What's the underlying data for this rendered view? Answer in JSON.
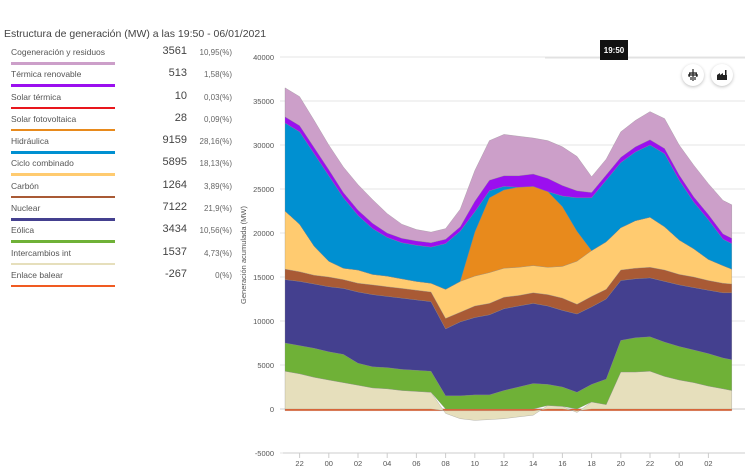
{
  "header": {
    "title": "Estructura de generación (MW) a las 19:50 - 06/01/2021"
  },
  "legend": [
    {
      "label": "Cogeneración y residuos",
      "value": "3561",
      "pct": "10,95(%)",
      "color": "#cc9fc9"
    },
    {
      "label": "Térmica renovable",
      "value": "513",
      "pct": "1,58(%)",
      "color": "#9b0fef"
    },
    {
      "label": "Solar térmica",
      "value": "10",
      "pct": "0,03(%)",
      "color": "#e8171d"
    },
    {
      "label": "Solar fotovoltaica",
      "value": "28",
      "pct": "0,09(%)",
      "color": "#e88a1c"
    },
    {
      "label": "Hidráulica",
      "value": "9159",
      "pct": "28,16(%)",
      "color": "#0090d1"
    },
    {
      "label": "Ciclo combinado",
      "value": "5895",
      "pct": "18,13(%)",
      "color": "#ffcb70"
    },
    {
      "label": "Carbón",
      "value": "1264",
      "pct": "3,89(%)",
      "color": "#a95a35"
    },
    {
      "label": "Nuclear",
      "value": "7122",
      "pct": "21,9(%)",
      "color": "#44408f"
    },
    {
      "label": "Eólica",
      "value": "3434",
      "pct": "10,56(%)",
      "color": "#6fb137"
    },
    {
      "label": "Intercambios int",
      "value": "1537",
      "pct": "4,73(%)",
      "color": "#e6dfbc"
    },
    {
      "label": "Enlace balear",
      "value": "-267",
      "pct": "0(%)",
      "color": "#f05b22"
    }
  ],
  "tooltip": {
    "time": "19:50"
  },
  "toolbar": {
    "icons": [
      {
        "name": "electricity-tower-icon",
        "glyph": "⚡"
      },
      {
        "name": "factory-icon",
        "glyph": "🏭"
      }
    ]
  },
  "chart_data": {
    "type": "area",
    "stacked": true,
    "title": "Estructura de generación (MW)",
    "xlabel": "",
    "ylabel": "Generación acumulada (MW)",
    "ylim": [
      -5000,
      40000
    ],
    "yticks": [
      -5000,
      0,
      5000,
      10000,
      15000,
      20000,
      25000,
      30000,
      35000,
      40000
    ],
    "xticks": [
      {
        "h": 1,
        "label": "22"
      },
      {
        "h": 3,
        "label": "00"
      },
      {
        "h": 5,
        "label": "02"
      },
      {
        "h": 7,
        "label": "04"
      },
      {
        "h": 9,
        "label": "06"
      },
      {
        "h": 11,
        "label": "08"
      },
      {
        "h": 13,
        "label": "10"
      },
      {
        "h": 15,
        "label": "12"
      },
      {
        "h": 17,
        "label": "14"
      },
      {
        "h": 19,
        "label": "16"
      },
      {
        "h": 21,
        "label": "18"
      },
      {
        "h": 23,
        "label": "20"
      },
      {
        "h": 25,
        "label": "22"
      },
      {
        "h": 27,
        "label": "00"
      },
      {
        "h": 29,
        "label": "02"
      }
    ],
    "x_hours_from_2100": [
      0,
      1,
      2,
      3,
      4,
      5,
      6,
      7,
      8,
      9,
      10,
      11,
      12,
      13,
      14,
      15,
      16,
      17,
      18,
      19,
      20,
      21,
      22,
      23,
      24,
      25,
      26,
      27,
      28,
      29,
      30,
      30.6
    ],
    "grid": true,
    "legend_position": "left",
    "series": [
      {
        "name": "Enlace balear",
        "color": "#f05b22",
        "values": [
          -200,
          -200,
          -200,
          -200,
          -200,
          -200,
          -200,
          -200,
          -200,
          -200,
          -200,
          -200,
          -200,
          -200,
          -200,
          -200,
          -200,
          -200,
          -200,
          -200,
          -200,
          -200,
          -200,
          -200,
          -200,
          -200,
          -200,
          -200,
          -200,
          -200,
          -200,
          -200
        ]
      },
      {
        "name": "Intercambios int",
        "color": "#e6dfbc",
        "values": [
          4300,
          4000,
          3600,
          3300,
          3000,
          2700,
          2400,
          2300,
          2100,
          2000,
          1900,
          -300,
          -900,
          -1100,
          -1000,
          -900,
          -700,
          -500,
          400,
          300,
          -200,
          800,
          500,
          4200,
          4200,
          4300,
          3700,
          3300,
          3000,
          2600,
          2300,
          2100
        ]
      },
      {
        "name": "Eólica",
        "color": "#6fb137",
        "values": [
          3200,
          3200,
          3300,
          3200,
          3200,
          2500,
          2400,
          2400,
          2400,
          2400,
          2400,
          1500,
          1500,
          1600,
          1600,
          2100,
          2500,
          2900,
          2400,
          2200,
          1900,
          2000,
          2900,
          3600,
          3900,
          3900,
          3900,
          3800,
          3700,
          3700,
          3500,
          3500
        ]
      },
      {
        "name": "Nuclear",
        "color": "#44408f",
        "values": [
          7200,
          7300,
          7300,
          7400,
          7500,
          8100,
          8200,
          8100,
          8100,
          8000,
          7900,
          7600,
          8400,
          8800,
          9100,
          9300,
          9200,
          9100,
          8900,
          8700,
          8900,
          8800,
          9100,
          6800,
          6700,
          6700,
          6900,
          7000,
          7100,
          7200,
          7400,
          7600
        ]
      },
      {
        "name": "Carbón",
        "color": "#a95a35",
        "values": [
          1200,
          1100,
          1000,
          1100,
          1000,
          1000,
          1100,
          1100,
          1100,
          1100,
          1100,
          1200,
          1100,
          1300,
          1300,
          1300,
          1200,
          1200,
          1300,
          1400,
          1100,
          1200,
          1100,
          1200,
          1200,
          1200,
          1300,
          1200,
          1200,
          1100,
          1100,
          1000
        ]
      },
      {
        "name": "Ciclo combinado",
        "color": "#ffcb70",
        "values": [
          6600,
          5400,
          3300,
          1800,
          1300,
          1500,
          1200,
          1200,
          1100,
          1000,
          1000,
          3300,
          3500,
          3400,
          3500,
          3300,
          3200,
          3100,
          3100,
          3600,
          4900,
          5200,
          5400,
          4800,
          5400,
          5700,
          4900,
          3900,
          3200,
          2400,
          2000,
          1700
        ]
      },
      {
        "name": "Solar fotovoltaica",
        "color": "#e88a1c",
        "values": [
          0,
          0,
          0,
          0,
          0,
          0,
          0,
          0,
          0,
          0,
          0,
          0,
          0,
          5000,
          8500,
          8900,
          9100,
          9000,
          8600,
          6800,
          3400,
          0,
          0,
          0,
          0,
          0,
          0,
          0,
          0,
          0,
          0,
          0
        ]
      },
      {
        "name": "Solar térmica",
        "color": "#e8171d",
        "values": [
          0,
          0,
          0,
          0,
          0,
          0,
          0,
          0,
          0,
          0,
          0,
          0,
          0,
          0,
          0,
          0,
          0,
          0,
          0,
          0,
          0,
          0,
          0,
          0,
          0,
          0,
          0,
          0,
          0,
          0,
          0,
          0
        ]
      },
      {
        "name": "Hidráulica",
        "color": "#0090d1",
        "values": [
          10000,
          10500,
          10500,
          9700,
          8000,
          6200,
          5200,
          4400,
          4100,
          4100,
          4100,
          5200,
          5700,
          2300,
          800,
          400,
          0,
          0,
          0,
          1200,
          3800,
          6000,
          7000,
          7400,
          7800,
          8200,
          8300,
          6800,
          5300,
          4500,
          3000,
          2900
        ]
      },
      {
        "name": "Térmica renovable",
        "color": "#9b0fef",
        "values": [
          700,
          700,
          700,
          700,
          600,
          600,
          600,
          500,
          500,
          500,
          500,
          500,
          500,
          1200,
          1200,
          1200,
          1300,
          1400,
          1500,
          1200,
          800,
          600,
          600,
          600,
          600,
          600,
          600,
          600,
          600,
          600,
          600,
          600
        ]
      },
      {
        "name": "Cogeneración y residuos",
        "color": "#cc9fc9",
        "values": [
          3300,
          3300,
          3100,
          2800,
          2900,
          2900,
          2700,
          2200,
          1600,
          1300,
          1200,
          1200,
          2000,
          3500,
          4500,
          4700,
          4500,
          4100,
          4300,
          4400,
          3900,
          1800,
          1800,
          2900,
          3000,
          3200,
          3400,
          3400,
          3600,
          3500,
          3800,
          3800
        ]
      }
    ]
  }
}
